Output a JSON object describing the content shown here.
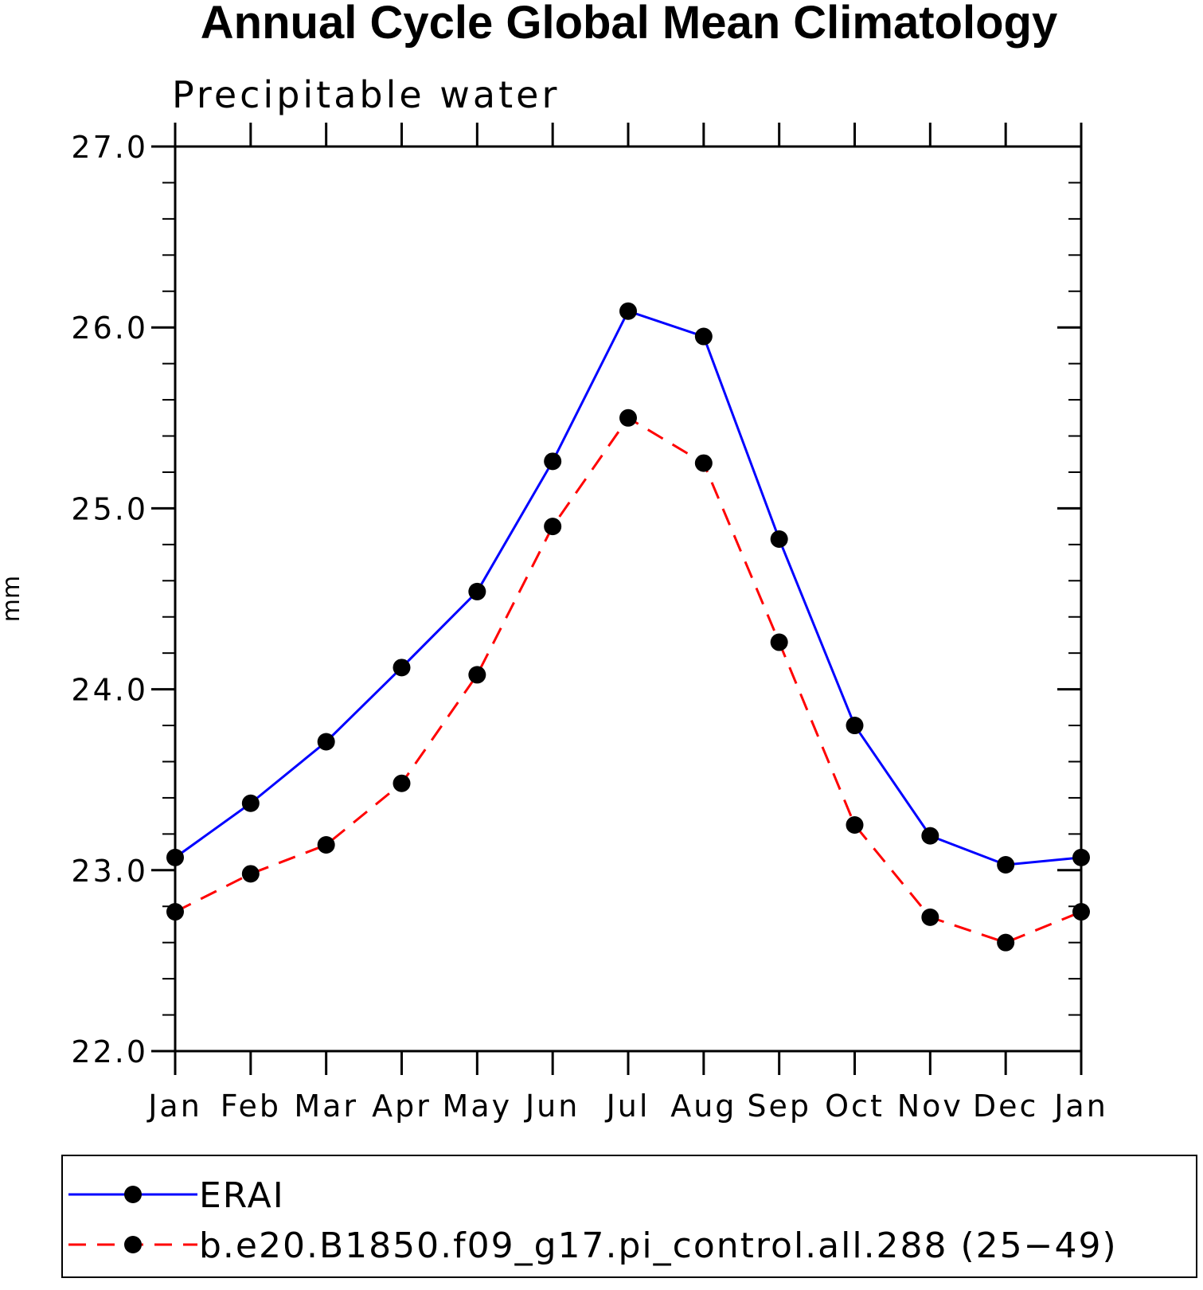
{
  "chart_data": {
    "type": "line",
    "title": "Annual Cycle Global Mean Climatology",
    "subtitle": "Precipitable water",
    "xlabel": "",
    "ylabel": "mm",
    "categories": [
      "Jan",
      "Feb",
      "Mar",
      "Apr",
      "May",
      "Jun",
      "Jul",
      "Aug",
      "Sep",
      "Oct",
      "Nov",
      "Dec",
      "Jan"
    ],
    "ylim": [
      22.0,
      27.0
    ],
    "y_ticks": [
      "22.0",
      "23.0",
      "24.0",
      "25.0",
      "26.0",
      "27.0"
    ],
    "y_minor_step": 0.2,
    "grid": false,
    "legend_position": "bottom",
    "series": [
      {
        "name": "ERAI",
        "color": "#0000ff",
        "line_style": "solid",
        "marker": "filled-circle",
        "values": [
          23.07,
          23.37,
          23.71,
          24.12,
          24.54,
          25.26,
          26.09,
          25.95,
          24.83,
          23.8,
          23.19,
          23.03,
          23.07
        ]
      },
      {
        "name": "b.e20.B1850.f09_g17.pi_control.all.288 (25−49)",
        "color": "#ff0000",
        "line_style": "dashed",
        "marker": "filled-circle",
        "values": [
          22.77,
          22.98,
          23.14,
          23.48,
          24.08,
          24.9,
          25.5,
          25.25,
          24.26,
          23.25,
          22.74,
          22.6,
          22.77
        ]
      }
    ]
  }
}
